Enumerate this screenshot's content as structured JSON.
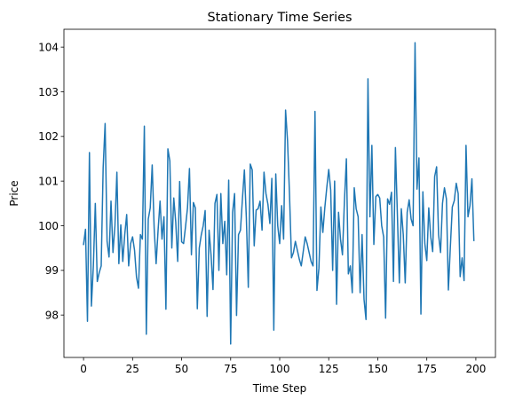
{
  "chart_data": {
    "type": "line",
    "title": "Stationary Time Series",
    "xlabel": "Time Step",
    "ylabel": "Price",
    "xlim": [
      -10,
      210
    ],
    "ylim": [
      97.05,
      104.4
    ],
    "xticks": [
      0,
      25,
      50,
      75,
      100,
      125,
      150,
      175,
      200
    ],
    "yticks": [
      98,
      99,
      100,
      101,
      102,
      103,
      104
    ],
    "grid": false,
    "legend": "none",
    "series": [
      {
        "color": "#1f77b4",
        "x_start": 0,
        "x_step": 1,
        "values": [
          99.58,
          99.92,
          97.86,
          101.64,
          98.2,
          99.1,
          100.5,
          98.75,
          98.95,
          99.1,
          101.3,
          102.29,
          99.65,
          99.3,
          100.55,
          99.4,
          100.0,
          101.2,
          99.15,
          100.02,
          99.2,
          99.8,
          100.25,
          99.1,
          99.6,
          99.75,
          99.45,
          98.85,
          98.6,
          99.8,
          99.7,
          102.23,
          97.57,
          100.15,
          100.4,
          101.36,
          99.95,
          99.15,
          99.9,
          100.55,
          99.7,
          100.2,
          98.13,
          101.72,
          101.45,
          99.5,
          100.62,
          100.08,
          99.2,
          100.99,
          99.64,
          99.6,
          99.98,
          100.4,
          101.28,
          99.35,
          100.52,
          100.4,
          98.14,
          99.5,
          99.79,
          100.0,
          100.34,
          97.97,
          99.9,
          99.35,
          98.57,
          100.5,
          100.7,
          99.0,
          100.72,
          99.6,
          100.1,
          98.9,
          101.02,
          97.35,
          100.3,
          100.72,
          97.99,
          99.8,
          99.9,
          100.6,
          101.25,
          100.18,
          98.62,
          101.38,
          101.25,
          99.55,
          100.35,
          100.38,
          100.55,
          99.9,
          101.2,
          100.72,
          100.48,
          100.05,
          101.06,
          97.66,
          101.16,
          100.0,
          99.6,
          100.45,
          99.7,
          102.59,
          101.9,
          100.7,
          99.28,
          99.4,
          99.65,
          99.45,
          99.25,
          99.1,
          99.42,
          99.75,
          99.6,
          99.4,
          99.2,
          99.1,
          102.56,
          98.55,
          99.05,
          100.42,
          99.85,
          100.4,
          100.85,
          101.26,
          100.8,
          99.0,
          101.0,
          98.24,
          100.3,
          99.7,
          99.35,
          100.55,
          101.5,
          98.92,
          99.1,
          98.5,
          100.85,
          100.38,
          100.2,
          98.5,
          99.8,
          98.35,
          97.9,
          103.29,
          100.2,
          101.8,
          99.58,
          100.65,
          100.7,
          100.62,
          100.0,
          99.75,
          97.93,
          100.6,
          100.48,
          100.75,
          98.75,
          101.75,
          100.25,
          98.72,
          100.38,
          99.8,
          98.72,
          100.3,
          100.58,
          100.15,
          100.0,
          104.1,
          100.82,
          101.52,
          98.02,
          100.76,
          99.6,
          99.22,
          100.4,
          99.75,
          99.42,
          101.1,
          101.32,
          99.8,
          99.4,
          100.5,
          100.85,
          100.6,
          98.56,
          99.52,
          100.42,
          100.56,
          100.95,
          100.72,
          98.86,
          99.28,
          98.77,
          101.8,
          100.2,
          100.45,
          101.05,
          99.67
        ]
      }
    ]
  }
}
